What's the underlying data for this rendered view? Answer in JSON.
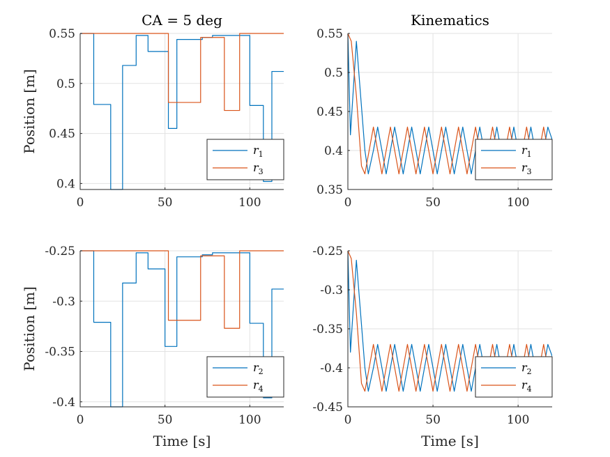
{
  "chart_data": [
    {
      "id": "top-left",
      "type": "line",
      "title": "CA = 5 deg",
      "xlabel": "",
      "ylabel": "Position [m]",
      "xlim": [
        0,
        120
      ],
      "ylim": [
        0.394,
        0.55
      ],
      "xticks": [
        0,
        50,
        100
      ],
      "xtick_labels": [
        "0",
        "50",
        "100"
      ],
      "yticks": [
        0.4,
        0.45,
        0.5,
        0.55
      ],
      "ytick_labels": [
        "0.4",
        "0.45",
        "0.5",
        "0.55"
      ],
      "grid": true,
      "legend": "bottom-right",
      "series": [
        {
          "name": "r",
          "sub": "1",
          "color": "#0072BD",
          "step": true,
          "x": [
            0,
            8,
            18,
            25,
            33,
            40,
            52,
            57,
            72,
            78,
            100,
            108,
            113,
            120
          ],
          "y": [
            0.55,
            0.479,
            0.394,
            0.518,
            0.548,
            0.532,
            0.455,
            0.544,
            0.546,
            0.548,
            0.478,
            0.402,
            0.512,
            0.512
          ]
        },
        {
          "name": "r",
          "sub": "3",
          "color": "#D95319",
          "step": true,
          "x": [
            0,
            52,
            71,
            85,
            94,
            120
          ],
          "y": [
            0.55,
            0.481,
            0.546,
            0.473,
            0.55,
            0.55
          ]
        }
      ]
    },
    {
      "id": "top-right",
      "type": "line",
      "title": "Kinematics",
      "xlabel": "",
      "ylabel": "",
      "xlim": [
        0,
        120
      ],
      "ylim": [
        0.35,
        0.55
      ],
      "xticks": [
        0,
        50,
        100
      ],
      "xtick_labels": [
        "0",
        "50",
        "100"
      ],
      "yticks": [
        0.35,
        0.4,
        0.45,
        0.5,
        0.55
      ],
      "ytick_labels": [
        "0.35",
        "0.4",
        "0.45",
        "0.5",
        "0.55"
      ],
      "grid": true,
      "legend": "bottom-right",
      "series": [
        {
          "name": "r",
          "sub": "1",
          "color": "#0072BD",
          "step": false,
          "x": [
            0,
            1.5,
            5,
            10,
            12,
            15,
            17.5,
            20,
            22.5,
            25,
            27.5,
            30,
            32.5,
            35,
            37.5,
            40,
            42.5,
            45,
            47.5,
            50,
            52.5,
            55,
            57.5,
            60,
            62.5,
            65,
            67.5,
            70,
            72.5,
            75,
            77.5,
            80,
            82.5,
            85,
            87.5,
            90,
            92.5,
            95,
            97.5,
            100,
            102.5,
            105,
            107.5,
            110,
            112.5,
            115,
            117.5,
            120
          ],
          "y": [
            0.55,
            0.42,
            0.54,
            0.4,
            0.37,
            0.4,
            0.43,
            0.4,
            0.37,
            0.4,
            0.43,
            0.4,
            0.37,
            0.4,
            0.43,
            0.4,
            0.37,
            0.4,
            0.43,
            0.4,
            0.37,
            0.4,
            0.43,
            0.4,
            0.37,
            0.4,
            0.43,
            0.4,
            0.37,
            0.4,
            0.43,
            0.4,
            0.37,
            0.4,
            0.43,
            0.4,
            0.37,
            0.4,
            0.43,
            0.4,
            0.37,
            0.4,
            0.43,
            0.4,
            0.37,
            0.4,
            0.43,
            0.414
          ]
        },
        {
          "name": "r",
          "sub": "3",
          "color": "#D95319",
          "step": false,
          "x": [
            0,
            2,
            5,
            8,
            10,
            12.5,
            15,
            17.5,
            20,
            22.5,
            25,
            27.5,
            30,
            32.5,
            35,
            37.5,
            40,
            42.5,
            45,
            47.5,
            50,
            52.5,
            55,
            57.5,
            60,
            62.5,
            65,
            67.5,
            70,
            72.5,
            75,
            77.5,
            80,
            82.5,
            85,
            87.5,
            90,
            92.5,
            95,
            97.5,
            100,
            102.5,
            105,
            107.5,
            110,
            112.5,
            115,
            117.5,
            120
          ],
          "y": [
            0.55,
            0.54,
            0.47,
            0.38,
            0.37,
            0.4,
            0.43,
            0.4,
            0.37,
            0.4,
            0.43,
            0.4,
            0.37,
            0.4,
            0.43,
            0.4,
            0.37,
            0.4,
            0.43,
            0.4,
            0.37,
            0.4,
            0.43,
            0.4,
            0.37,
            0.4,
            0.43,
            0.4,
            0.37,
            0.4,
            0.43,
            0.4,
            0.37,
            0.4,
            0.43,
            0.4,
            0.37,
            0.4,
            0.43,
            0.4,
            0.37,
            0.4,
            0.43,
            0.4,
            0.37,
            0.4,
            0.43,
            0.4,
            0.372
          ]
        }
      ]
    },
    {
      "id": "bottom-left",
      "type": "line",
      "title": "",
      "xlabel": "Time [s]",
      "ylabel": "Position [m]",
      "xlim": [
        0,
        120
      ],
      "ylim": [
        -0.405,
        -0.25
      ],
      "xticks": [
        0,
        50,
        100
      ],
      "xtick_labels": [
        "0",
        "50",
        "100"
      ],
      "yticks": [
        -0.4,
        -0.35,
        -0.3,
        -0.25
      ],
      "ytick_labels": [
        "-0.4",
        "-0.35",
        "-0.3",
        "-0.25"
      ],
      "grid": true,
      "legend": "bottom-right",
      "series": [
        {
          "name": "r",
          "sub": "2",
          "color": "#0072BD",
          "step": true,
          "x": [
            0,
            8,
            18,
            25,
            33,
            40,
            50,
            57,
            72,
            78,
            100,
            108,
            113,
            120
          ],
          "y": [
            -0.25,
            -0.321,
            -0.405,
            -0.282,
            -0.252,
            -0.268,
            -0.345,
            -0.256,
            -0.254,
            -0.252,
            -0.322,
            -0.396,
            -0.288,
            -0.288
          ]
        },
        {
          "name": "r",
          "sub": "4",
          "color": "#D95319",
          "step": true,
          "x": [
            0,
            52,
            71,
            85,
            94,
            120
          ],
          "y": [
            -0.25,
            -0.319,
            -0.255,
            -0.327,
            -0.25,
            -0.25
          ]
        }
      ]
    },
    {
      "id": "bottom-right",
      "type": "line",
      "title": "",
      "xlabel": "Time [s]",
      "ylabel": "",
      "xlim": [
        0,
        120
      ],
      "ylim": [
        -0.45,
        -0.25
      ],
      "xticks": [
        0,
        50,
        100
      ],
      "xtick_labels": [
        "0",
        "50",
        "100"
      ],
      "yticks": [
        -0.45,
        -0.4,
        -0.35,
        -0.3,
        -0.25
      ],
      "ytick_labels": [
        "-0.45",
        "-0.4",
        "-0.35",
        "-0.3",
        "-0.25"
      ],
      "grid": true,
      "legend": "bottom-right",
      "series": [
        {
          "name": "r",
          "sub": "2",
          "color": "#0072BD",
          "step": false,
          "x": [
            0,
            1.5,
            5,
            10,
            12,
            15,
            17.5,
            20,
            22.5,
            25,
            27.5,
            30,
            32.5,
            35,
            37.5,
            40,
            42.5,
            45,
            47.5,
            50,
            52.5,
            55,
            57.5,
            60,
            62.5,
            65,
            67.5,
            70,
            72.5,
            75,
            77.5,
            80,
            82.5,
            85,
            87.5,
            90,
            92.5,
            95,
            97.5,
            100,
            102.5,
            105,
            107.5,
            110,
            112.5,
            115,
            117.5,
            120
          ],
          "y": [
            -0.25,
            -0.38,
            -0.262,
            -0.4,
            -0.43,
            -0.4,
            -0.37,
            -0.4,
            -0.43,
            -0.4,
            -0.37,
            -0.4,
            -0.43,
            -0.4,
            -0.37,
            -0.4,
            -0.43,
            -0.4,
            -0.37,
            -0.4,
            -0.43,
            -0.4,
            -0.37,
            -0.4,
            -0.43,
            -0.4,
            -0.37,
            -0.4,
            -0.43,
            -0.4,
            -0.37,
            -0.4,
            -0.43,
            -0.4,
            -0.37,
            -0.4,
            -0.43,
            -0.4,
            -0.37,
            -0.4,
            -0.43,
            -0.4,
            -0.37,
            -0.4,
            -0.43,
            -0.4,
            -0.37,
            -0.385
          ]
        },
        {
          "name": "r",
          "sub": "4",
          "color": "#D95319",
          "step": false,
          "x": [
            0,
            2,
            5,
            8,
            10,
            12.5,
            15,
            17.5,
            20,
            22.5,
            25,
            27.5,
            30,
            32.5,
            35,
            37.5,
            40,
            42.5,
            45,
            47.5,
            50,
            52.5,
            55,
            57.5,
            60,
            62.5,
            65,
            67.5,
            70,
            72.5,
            75,
            77.5,
            80,
            82.5,
            85,
            87.5,
            90,
            92.5,
            95,
            97.5,
            100,
            102.5,
            105,
            107.5,
            110,
            112.5,
            115,
            117.5,
            120
          ],
          "y": [
            -0.25,
            -0.26,
            -0.33,
            -0.42,
            -0.43,
            -0.4,
            -0.37,
            -0.4,
            -0.43,
            -0.4,
            -0.37,
            -0.4,
            -0.43,
            -0.4,
            -0.37,
            -0.4,
            -0.43,
            -0.4,
            -0.37,
            -0.4,
            -0.43,
            -0.4,
            -0.37,
            -0.4,
            -0.43,
            -0.4,
            -0.37,
            -0.4,
            -0.43,
            -0.4,
            -0.37,
            -0.4,
            -0.43,
            -0.4,
            -0.37,
            -0.4,
            -0.43,
            -0.4,
            -0.37,
            -0.4,
            -0.43,
            -0.4,
            -0.37,
            -0.4,
            -0.43,
            -0.4,
            -0.37,
            -0.4,
            -0.428
          ]
        }
      ]
    }
  ]
}
